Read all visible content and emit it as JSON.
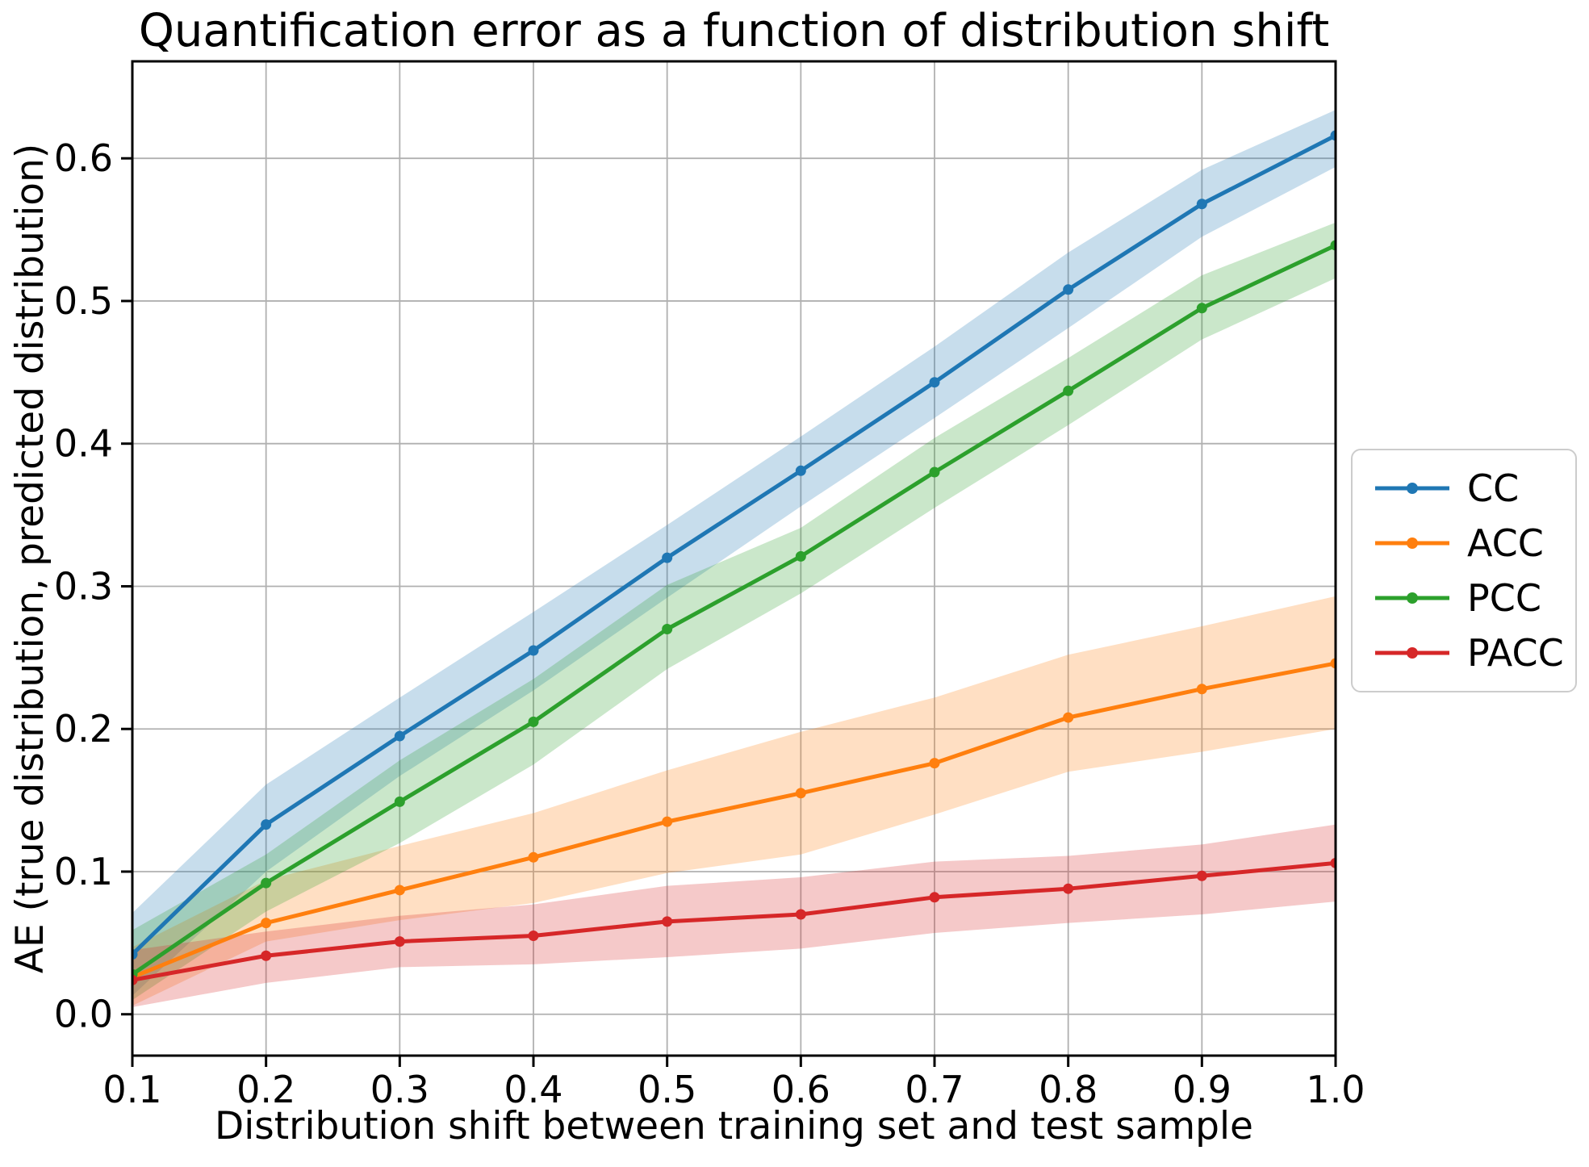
{
  "figure": {
    "title": "Quantification error as a function of distribution shift",
    "xlabel": "Distribution shift between training set and test sample",
    "ylabel": "AE (true distribution, predicted distribution)"
  },
  "chart_data": {
    "type": "line",
    "title": "Quantification error as a function of distribution shift",
    "xlabel": "Distribution shift between training set and test sample",
    "ylabel": "AE (true distribution, predicted distribution)",
    "grid": true,
    "grid_color": "#b0b0b0",
    "legend_position": "center right, outside axes",
    "x": [
      0.1,
      0.2,
      0.3,
      0.4,
      0.5,
      0.6,
      0.7,
      0.8,
      0.9,
      1.0
    ],
    "xticks": [
      "0.1",
      "0.2",
      "0.3",
      "0.4",
      "0.5",
      "0.6",
      "0.7",
      "0.8",
      "0.9",
      "1.0"
    ],
    "yticks": [
      "0.0",
      "0.1",
      "0.2",
      "0.3",
      "0.4",
      "0.5",
      "0.6"
    ],
    "xlim": [
      0.1,
      1.0
    ],
    "ylim": [
      -0.029,
      0.668
    ],
    "series": [
      {
        "name": "CC",
        "color": "#1f77b4",
        "values": [
          0.042,
          0.133,
          0.195,
          0.255,
          0.32,
          0.381,
          0.443,
          0.508,
          0.568,
          0.616
        ],
        "band_lower": [
          0.013,
          0.1,
          0.167,
          0.227,
          0.292,
          0.356,
          0.418,
          0.481,
          0.545,
          0.594
        ],
        "band_upper": [
          0.071,
          0.161,
          0.222,
          0.282,
          0.343,
          0.405,
          0.468,
          0.534,
          0.592,
          0.634
        ]
      },
      {
        "name": "ACC",
        "color": "#ff7f0e",
        "values": [
          0.026,
          0.064,
          0.087,
          0.11,
          0.135,
          0.155,
          0.176,
          0.208,
          0.228,
          0.246
        ],
        "band_lower": [
          0.006,
          0.051,
          0.066,
          0.078,
          0.099,
          0.112,
          0.14,
          0.17,
          0.184,
          0.2
        ],
        "band_upper": [
          0.047,
          0.094,
          0.118,
          0.141,
          0.171,
          0.198,
          0.222,
          0.252,
          0.272,
          0.293
        ]
      },
      {
        "name": "PCC",
        "color": "#2ca02c",
        "values": [
          0.028,
          0.092,
          0.149,
          0.205,
          0.27,
          0.321,
          0.38,
          0.437,
          0.495,
          0.539
        ],
        "band_lower": [
          0.01,
          0.072,
          0.12,
          0.175,
          0.242,
          0.295,
          0.355,
          0.413,
          0.473,
          0.516
        ],
        "band_upper": [
          0.059,
          0.112,
          0.178,
          0.235,
          0.301,
          0.341,
          0.404,
          0.46,
          0.518,
          0.555
        ]
      },
      {
        "name": "PACC",
        "color": "#d62728",
        "values": [
          0.024,
          0.041,
          0.051,
          0.055,
          0.065,
          0.07,
          0.082,
          0.088,
          0.097,
          0.106
        ],
        "band_lower": [
          0.005,
          0.022,
          0.033,
          0.035,
          0.04,
          0.046,
          0.057,
          0.064,
          0.07,
          0.079
        ],
        "band_upper": [
          0.045,
          0.058,
          0.069,
          0.077,
          0.09,
          0.096,
          0.107,
          0.111,
          0.119,
          0.133
        ]
      }
    ]
  }
}
